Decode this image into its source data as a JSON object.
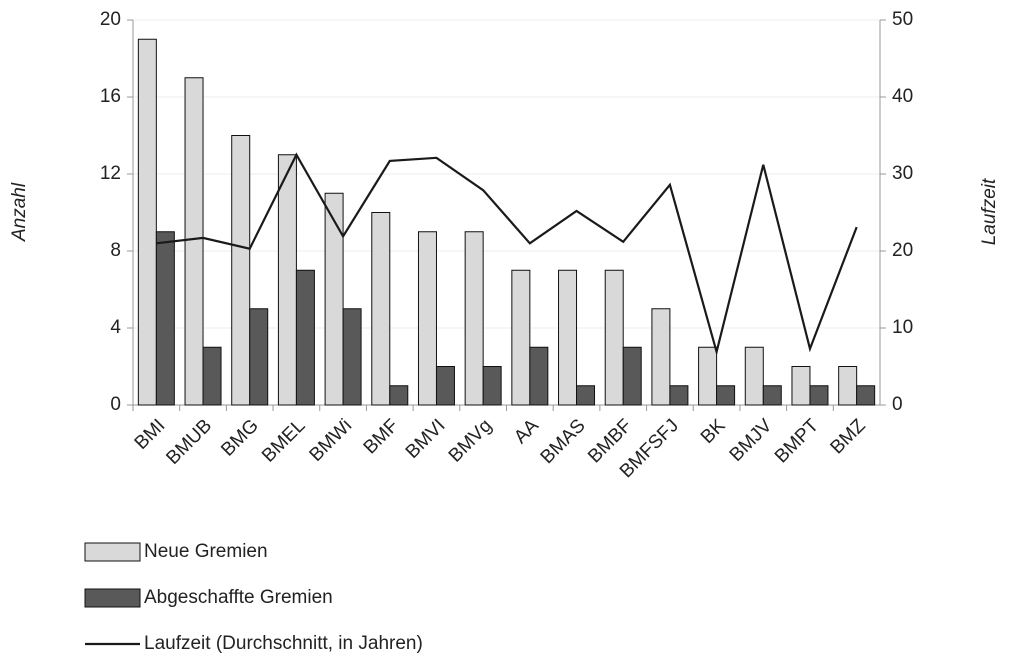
{
  "chart_data": {
    "type": "bar",
    "categories": [
      "BMI",
      "BMUB",
      "BMG",
      "BMEL",
      "BMWi",
      "BMF",
      "BMVI",
      "BMVg",
      "AA",
      "BMAS",
      "BMBF",
      "BMFSFJ",
      "BK",
      "BMJV",
      "BMPT",
      "BMZ"
    ],
    "series": [
      {
        "name": "Neue Gremien",
        "type": "bar",
        "color": "#d9d9d9",
        "values": [
          19,
          17,
          14,
          13,
          11,
          10,
          9,
          9,
          7,
          7,
          7,
          5,
          3,
          3,
          2,
          2
        ]
      },
      {
        "name": "Abgeschaffte Gremien",
        "type": "bar",
        "color": "#595959",
        "values": [
          9,
          3,
          5,
          7,
          5,
          1,
          2,
          2,
          3,
          1,
          3,
          1,
          1,
          1,
          1,
          1
        ]
      },
      {
        "name": "Laufzeit (Durchschnitt, in Jahren)",
        "type": "line",
        "axis": "y2",
        "color": "#1a1a1a",
        "values": [
          21.0,
          21.7,
          20.3,
          32.5,
          21.9,
          31.7,
          32.1,
          27.9,
          21.0,
          25.2,
          21.2,
          28.6,
          6.9,
          31.2,
          7.3,
          23.1
        ]
      }
    ],
    "ylabel": "Anzahl",
    "y2label": "Laufzeit",
    "ylim": [
      0,
      20
    ],
    "yticks": [
      0,
      4,
      8,
      12,
      16,
      20
    ],
    "y2lim": [
      0,
      50
    ],
    "y2ticks": [
      0,
      10,
      20,
      30,
      40,
      50
    ],
    "grid": true,
    "legend": "bottom-left"
  }
}
